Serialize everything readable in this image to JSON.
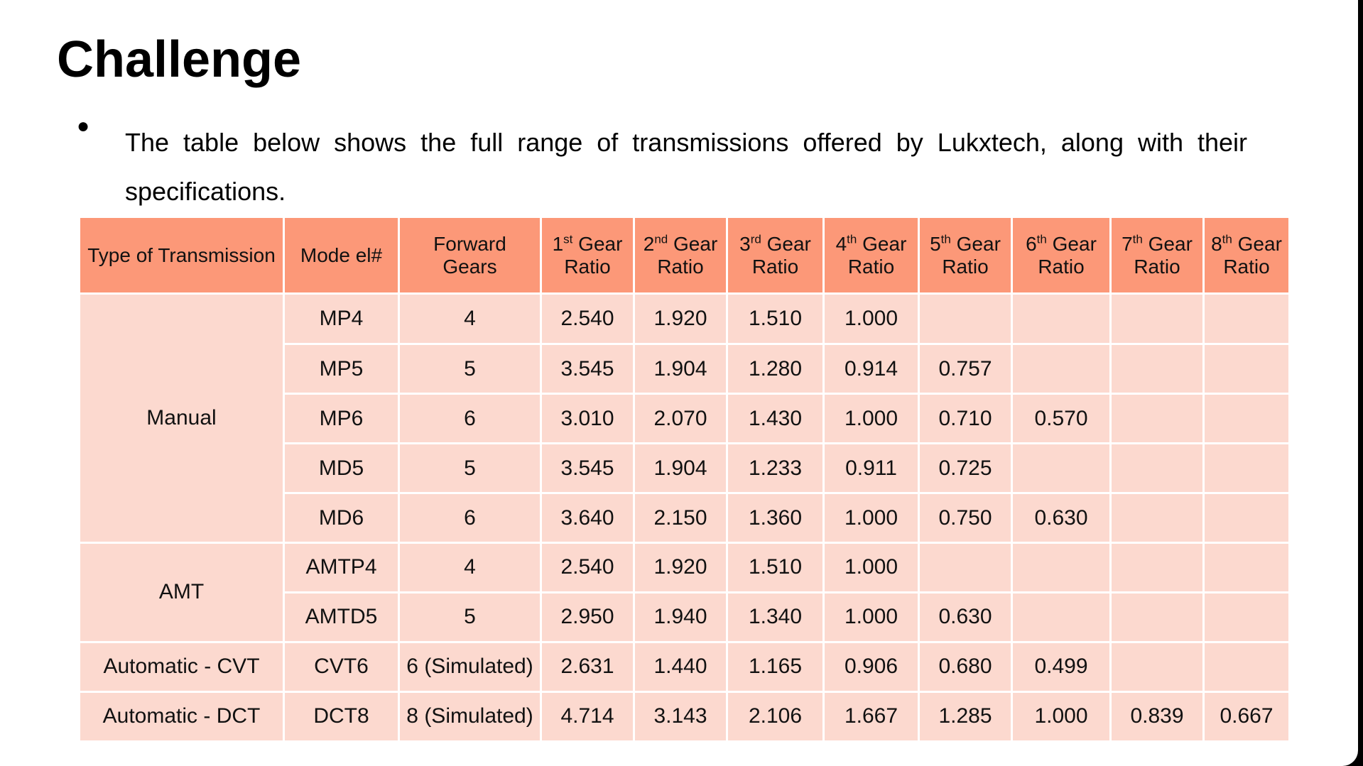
{
  "title": "Challenge",
  "bullet_text": "The table below shows the full range of transmissions offered by Lukxtech, along with their specifications.",
  "table": {
    "headers": [
      {
        "main": "Type of Transmission",
        "sup": "",
        "tail": ""
      },
      {
        "main": "Mode el#",
        "sup": "",
        "tail": ""
      },
      {
        "main": "Forward",
        "sup": "",
        "tail": "Gears"
      },
      {
        "main": "1",
        "sup": "st",
        "tail": "Gear Ratio"
      },
      {
        "main": "2",
        "sup": "nd",
        "tail": "Gear Ratio"
      },
      {
        "main": "3",
        "sup": "rd",
        "tail": "Gear Ratio"
      },
      {
        "main": "4",
        "sup": "th",
        "tail": "Gear Ratio"
      },
      {
        "main": "5",
        "sup": "th",
        "tail": "Gear Ratio"
      },
      {
        "main": "6",
        "sup": "th",
        "tail": "Gear Ratio"
      },
      {
        "main": "7",
        "sup": "th",
        "tail": "Gear Ratio"
      },
      {
        "main": "8",
        "sup": "th",
        "tail": "Gear Ratio"
      }
    ],
    "groups": [
      {
        "type": "Manual",
        "rows": [
          [
            "MP4",
            "4",
            "2.540",
            "1.920",
            "1.510",
            "1.000",
            "",
            "",
            "",
            ""
          ],
          [
            "MP5",
            "5",
            "3.545",
            "1.904",
            "1.280",
            "0.914",
            "0.757",
            "",
            "",
            ""
          ],
          [
            "MP6",
            "6",
            "3.010",
            "2.070",
            "1.430",
            "1.000",
            "0.710",
            "0.570",
            "",
            ""
          ],
          [
            "MD5",
            "5",
            "3.545",
            "1.904",
            "1.233",
            "0.911",
            "0.725",
            "",
            "",
            ""
          ],
          [
            "MD6",
            "6",
            "3.640",
            "2.150",
            "1.360",
            "1.000",
            "0.750",
            "0.630",
            "",
            ""
          ]
        ]
      },
      {
        "type": "AMT",
        "rows": [
          [
            "AMTP4",
            "4",
            "2.540",
            "1.920",
            "1.510",
            "1.000",
            "",
            "",
            "",
            ""
          ],
          [
            "AMTD5",
            "5",
            "2.950",
            "1.940",
            "1.340",
            "1.000",
            "0.630",
            "",
            "",
            ""
          ]
        ]
      },
      {
        "type": "Automatic - CVT",
        "rows": [
          [
            "CVT6",
            "6 (Simulated)",
            "2.631",
            "1.440",
            "1.165",
            "0.906",
            "0.680",
            "0.499",
            "",
            ""
          ]
        ]
      },
      {
        "type": "Automatic - DCT",
        "rows": [
          [
            "DCT8",
            "8 (Simulated)",
            "4.714",
            "3.143",
            "2.106",
            "1.667",
            "1.285",
            "1.000",
            "0.839",
            "0.667"
          ]
        ]
      }
    ]
  }
}
